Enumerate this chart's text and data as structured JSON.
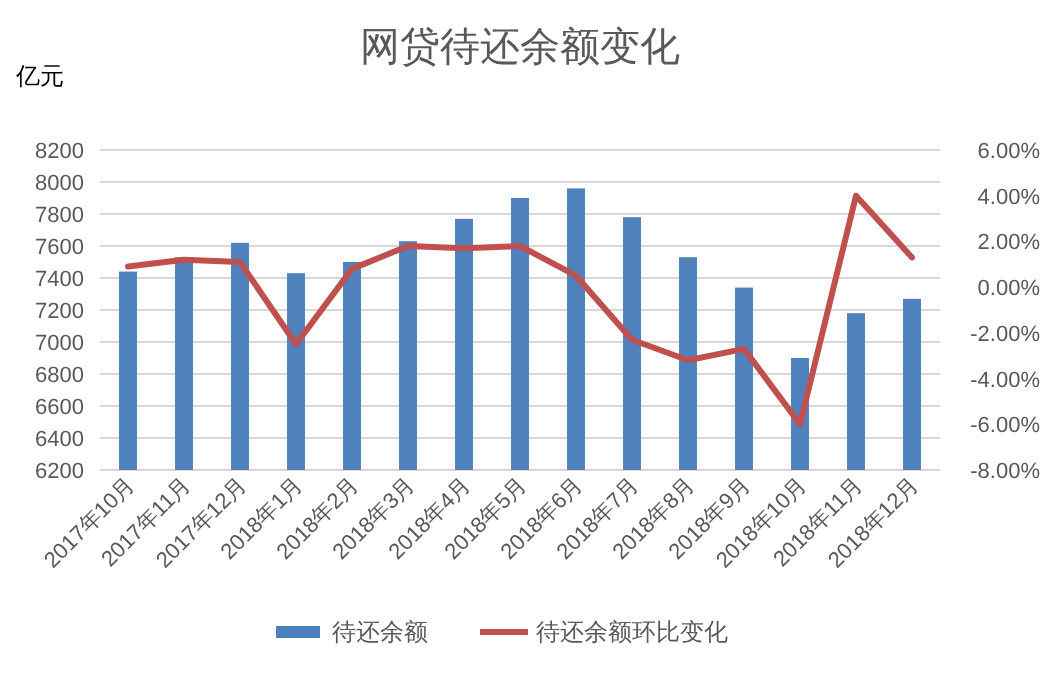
{
  "chart_data": {
    "type": "bar",
    "title": "网贷待还余额变化",
    "ylabel": "亿元",
    "categories": [
      "2017年10月",
      "2017年11月",
      "2017年12月",
      "2018年1月",
      "2018年2月",
      "2018年3月",
      "2018年4月",
      "2018年5月",
      "2018年6月",
      "2018年7月",
      "2018年8月",
      "2018年9月",
      "2018年10月",
      "2018年11月",
      "2018年12月"
    ],
    "series": [
      {
        "name": "待还余额",
        "color": "#4f81bd",
        "values": [
          7440,
          7530,
          7620,
          7430,
          7500,
          7630,
          7770,
          7900,
          7960,
          7780,
          7530,
          7340,
          6900,
          7180,
          7270
        ]
      },
      {
        "name": "待还余额环比变化",
        "type": "line",
        "axis": "y2",
        "color": "#c0504d",
        "values": [
          0.9,
          1.2,
          1.1,
          -2.5,
          0.8,
          1.8,
          1.7,
          1.8,
          0.5,
          -2.3,
          -3.2,
          -2.7,
          -6.0,
          4.0,
          1.3
        ]
      }
    ],
    "ylim": [
      6200,
      8200
    ],
    "yticks": [
      6200,
      6400,
      6600,
      6800,
      7000,
      7200,
      7400,
      7600,
      7800,
      8000,
      8200
    ],
    "y2lim": [
      -8,
      6
    ],
    "y2ticks": [
      {
        "value": -8,
        "label": "-8.00%"
      },
      {
        "value": -6,
        "label": "-6.00%"
      },
      {
        "value": -4,
        "label": "-4.00%"
      },
      {
        "value": -2,
        "label": "-2.00%"
      },
      {
        "value": 0,
        "label": "0.00%"
      },
      {
        "value": 2,
        "label": "2.00%"
      },
      {
        "value": 4,
        "label": "4.00%"
      },
      {
        "value": 6,
        "label": "6.00%"
      }
    ],
    "grid": "y",
    "legend": "bottom",
    "marker": "none"
  }
}
